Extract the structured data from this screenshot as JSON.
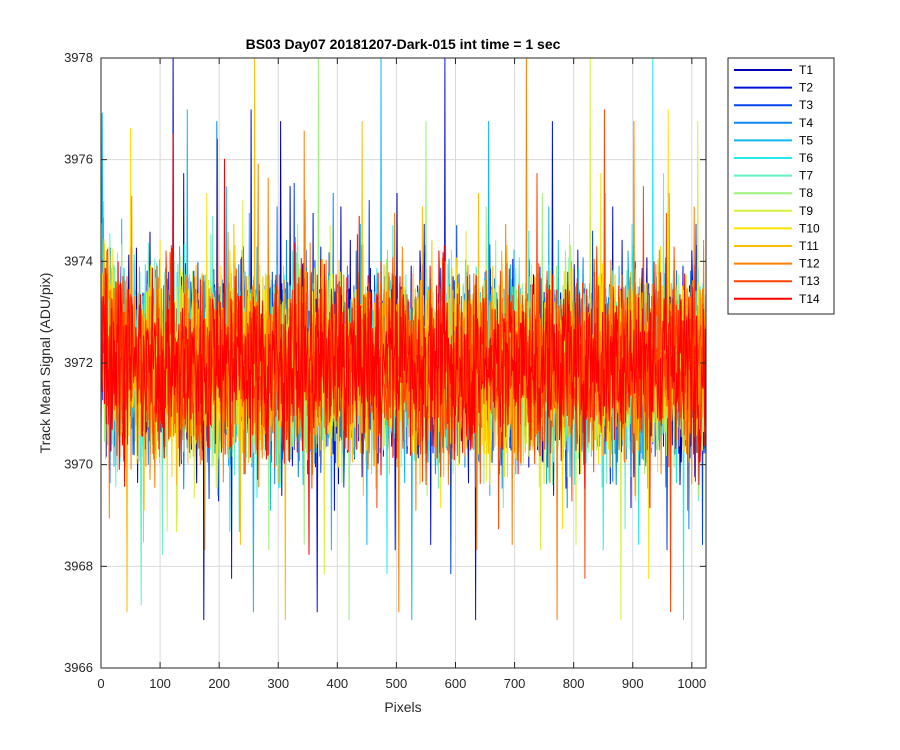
{
  "chart_data": {
    "type": "line",
    "title": "BS03 Day07 20181207-Dark-015 int time = 1 sec",
    "xlabel": "Pixels",
    "ylabel": "Track Mean Signal (ADU/pix)",
    "xlim": [
      0,
      1024
    ],
    "ylim": [
      3966,
      3978
    ],
    "xticks": [
      0,
      100,
      200,
      300,
      400,
      500,
      600,
      700,
      800,
      900,
      1000
    ],
    "yticks": [
      3966,
      3968,
      3970,
      3972,
      3974,
      3976,
      3978
    ],
    "x_tick_labels": [
      "0",
      "100",
      "200",
      "300",
      "400",
      "500",
      "600",
      "700",
      "800",
      "900",
      "1000"
    ],
    "y_tick_labels": [
      "3966",
      "3968",
      "3970",
      "3972",
      "3974",
      "3976",
      "3978"
    ],
    "grid": true,
    "legend_position": "outside-right",
    "num_points": 1024,
    "approx_mean": 3972,
    "approx_noise_std": 0.9,
    "approx_range": [
      3967.1,
      3978
    ],
    "series": [
      {
        "name": "T1",
        "color": "#0000b8"
      },
      {
        "name": "T2",
        "color": "#0010dc"
      },
      {
        "name": "T3",
        "color": "#0042f0"
      },
      {
        "name": "T4",
        "color": "#0c86f0"
      },
      {
        "name": "T5",
        "color": "#10b8f0"
      },
      {
        "name": "T6",
        "color": "#22ecf0"
      },
      {
        "name": "T7",
        "color": "#62f0c4"
      },
      {
        "name": "T8",
        "color": "#9cf07c"
      },
      {
        "name": "T9",
        "color": "#d8f03c"
      },
      {
        "name": "T10",
        "color": "#ffe000"
      },
      {
        "name": "T11",
        "color": "#ffbc00"
      },
      {
        "name": "T12",
        "color": "#ff7e00"
      },
      {
        "name": "T13",
        "color": "#ff4200"
      },
      {
        "name": "T14",
        "color": "#ff0000"
      }
    ]
  }
}
